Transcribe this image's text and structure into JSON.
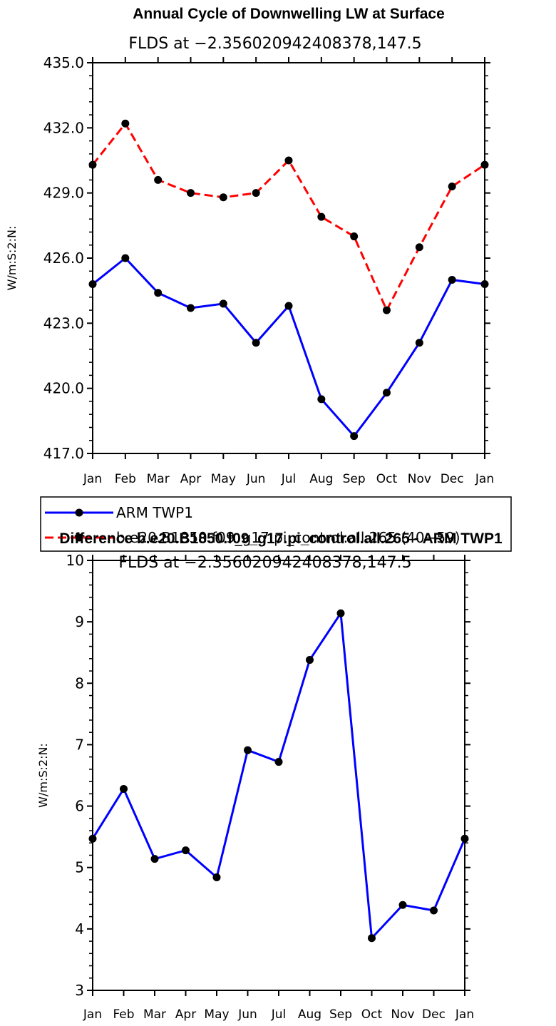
{
  "chart_data": [
    {
      "type": "line",
      "title": "Annual Cycle of Downwelling LW at Surface",
      "subtitle": "FLDS at −2.356020942408378,147.5",
      "ylabel": "W/m:S:2:N:",
      "xlabel": "",
      "categories": [
        "Jan",
        "Feb",
        "Mar",
        "Apr",
        "May",
        "Jun",
        "Jul",
        "Aug",
        "Sep",
        "Oct",
        "Nov",
        "Dec",
        "Jan"
      ],
      "ylim": [
        417.0,
        435.0
      ],
      "yticks": [
        "417.0",
        "420.0",
        "423.0",
        "426.0",
        "429.0",
        "432.0",
        "435.0"
      ],
      "series": [
        {
          "name": "ARM TWP1",
          "color": "#0000ff",
          "dash": "solid",
          "values": [
            424.8,
            426.0,
            424.4,
            423.7,
            423.9,
            422.1,
            423.8,
            419.5,
            417.8,
            419.8,
            422.1,
            425.0,
            424.8
          ]
        },
        {
          "name": "b.e20.B1850.f09_g17.pi_control.all.265 (40−59)",
          "color": "#ff0000",
          "dash": "dashed",
          "values": [
            430.3,
            432.2,
            429.6,
            429.0,
            428.8,
            429.0,
            430.5,
            427.9,
            427.0,
            423.6,
            426.5,
            429.3,
            430.3
          ]
        }
      ],
      "legend_position": "below"
    },
    {
      "type": "line",
      "title": "Difference b.e20.B1850.f09_g17.pi_control.all.265 - ARM TWP1",
      "subtitle": "FLDS at −2.356020942408378,147.5",
      "ylabel": "W/m:S:2:N:",
      "xlabel": "",
      "categories": [
        "Jan",
        "Feb",
        "Mar",
        "Apr",
        "May",
        "Jun",
        "Jul",
        "Aug",
        "Sep",
        "Oct",
        "Nov",
        "Dec",
        "Jan"
      ],
      "ylim": [
        3,
        10
      ],
      "yticks": [
        "3",
        "4",
        "5",
        "6",
        "7",
        "8",
        "9",
        "10"
      ],
      "series": [
        {
          "name": "Difference",
          "color": "#0000ff",
          "dash": "solid",
          "values": [
            5.47,
            6.28,
            5.14,
            5.28,
            4.84,
            6.91,
            6.72,
            8.38,
            9.14,
            3.85,
            4.39,
            4.3,
            5.47
          ]
        }
      ]
    }
  ]
}
